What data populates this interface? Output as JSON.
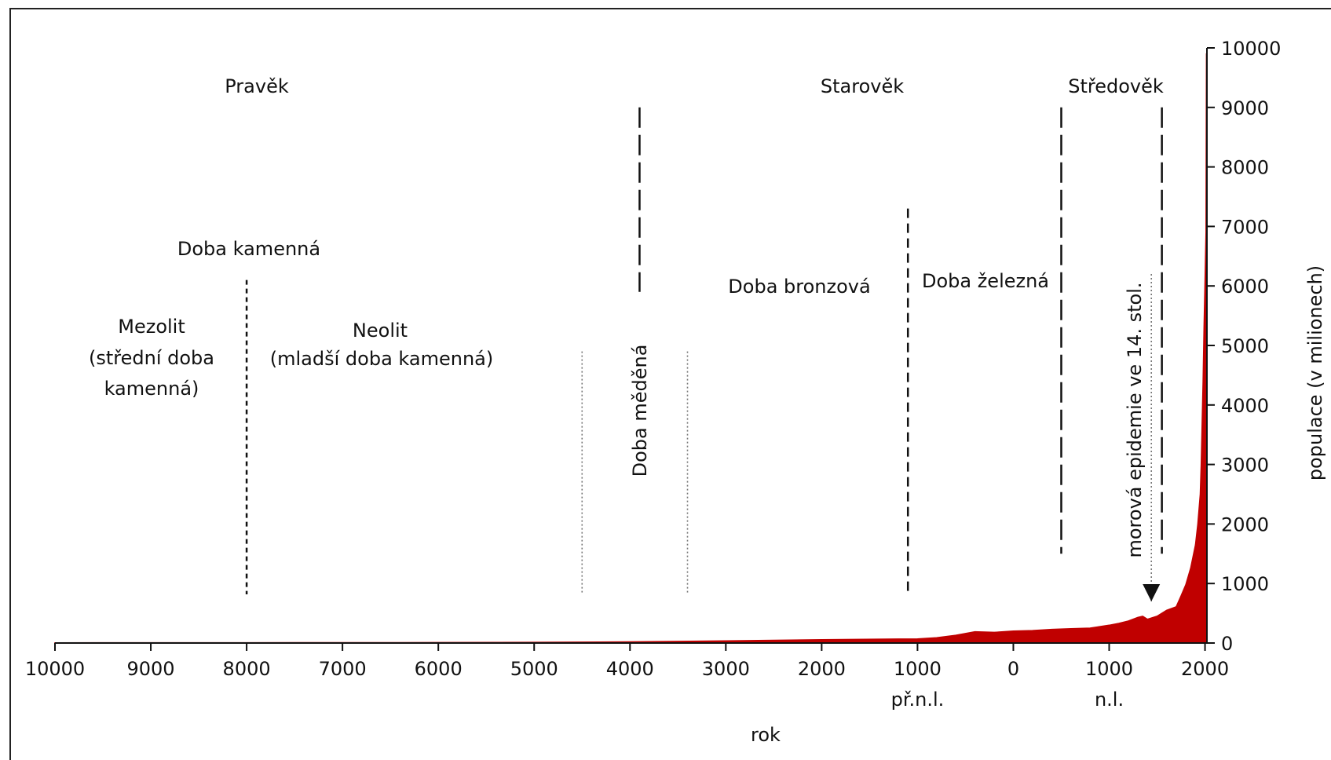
{
  "chart_data": {
    "type": "area",
    "title": "",
    "xlabel": "rok",
    "ylabel": "populace (v milionech)",
    "xlim": [
      -10000,
      2020
    ],
    "ylim": [
      0,
      10000
    ],
    "x_ticks": [
      {
        "value": -10000,
        "label": "10000",
        "sub": ""
      },
      {
        "value": -9000,
        "label": "9000",
        "sub": ""
      },
      {
        "value": -8000,
        "label": "8000",
        "sub": ""
      },
      {
        "value": -7000,
        "label": "7000",
        "sub": ""
      },
      {
        "value": -6000,
        "label": "6000",
        "sub": ""
      },
      {
        "value": -5000,
        "label": "5000",
        "sub": ""
      },
      {
        "value": -4000,
        "label": "4000",
        "sub": ""
      },
      {
        "value": -3000,
        "label": "3000",
        "sub": ""
      },
      {
        "value": -2000,
        "label": "2000",
        "sub": ""
      },
      {
        "value": -1000,
        "label": "1000",
        "sub": "př.n.l."
      },
      {
        "value": 0,
        "label": "0",
        "sub": ""
      },
      {
        "value": 1000,
        "label": "1000",
        "sub": "n.l."
      },
      {
        "value": 2000,
        "label": "2000",
        "sub": ""
      }
    ],
    "y_ticks": [
      0,
      1000,
      2000,
      3000,
      4000,
      5000,
      6000,
      7000,
      8000,
      9000,
      10000
    ],
    "series": [
      {
        "color": "#c00000",
        "x": [
          -10000,
          -8000,
          -6000,
          -5000,
          -4000,
          -3000,
          -2000,
          -1000,
          -800,
          -600,
          -400,
          -200,
          0,
          200,
          400,
          600,
          800,
          1000,
          1100,
          1200,
          1300,
          1350,
          1400,
          1500,
          1600,
          1700,
          1750,
          1800,
          1850,
          1900,
          1925,
          1950,
          1960,
          1970,
          1980,
          1990,
          2000,
          2010,
          2015
        ],
        "y": [
          4,
          5,
          8,
          12,
          20,
          35,
          55,
          70,
          90,
          130,
          190,
          180,
          200,
          210,
          230,
          240,
          250,
          300,
          330,
          370,
          430,
          450,
          400,
          450,
          550,
          610,
          790,
          980,
          1260,
          1650,
          2000,
          2500,
          3000,
          3700,
          4400,
          5300,
          6100,
          6900,
          9900
        ]
      }
    ],
    "annotations": {
      "periods": [
        {
          "name": "mezolit",
          "lines": [
            "Mezolit",
            "(střední doba",
            "kamenná)"
          ]
        },
        {
          "name": "neolit",
          "lines": [
            "Neolit",
            "(mladší doba kamenná)"
          ]
        },
        {
          "name": "doba-kamenna",
          "lines": [
            "Doba kamenná"
          ]
        },
        {
          "name": "praveк",
          "lines": [
            "Pravěk"
          ]
        },
        {
          "name": "starovek",
          "lines": [
            "Starověk"
          ]
        },
        {
          "name": "stredovek",
          "lines": [
            "Středověk"
          ]
        },
        {
          "name": "doba-bronzova",
          "lines": [
            "Doba bronzová"
          ]
        },
        {
          "name": "doba-zelezna",
          "lines": [
            "Doba železná"
          ]
        }
      ],
      "doba_medena": "Doba měděná",
      "epidemie": "morová epidemie ve 14. stol.",
      "boundaries": [
        {
          "year": -8000,
          "y_top": 6100,
          "style": "dashed-fine"
        },
        {
          "year": -4500,
          "y_top": 4900,
          "style": "dotted"
        },
        {
          "year": -3400,
          "y_top": 4900,
          "style": "dotted"
        },
        {
          "year": -3900,
          "y_top": 9000,
          "y_bottom": 5900,
          "style": "dashed-long"
        },
        {
          "year": -1100,
          "y_top": 7300,
          "style": "dashed"
        },
        {
          "year": 500,
          "y_top": 9000,
          "y_bottom": 1500,
          "style": "dashed-long"
        },
        {
          "year": 1550,
          "y_top": 9000,
          "y_bottom": 1500,
          "style": "dashed-long"
        },
        {
          "year": 1440,
          "y_top": 6200,
          "y_bottom": 700,
          "style": "dotted-arrow"
        }
      ]
    }
  }
}
